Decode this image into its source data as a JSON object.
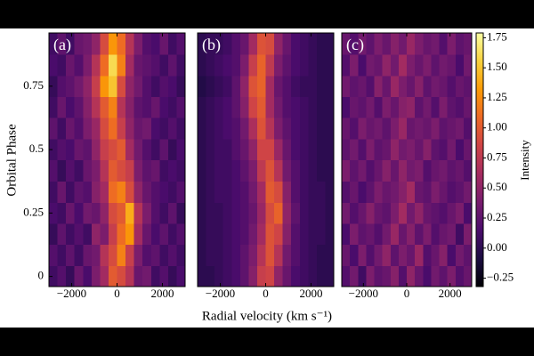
{
  "figure": {
    "xlabel": "Radial velocity (km s⁻¹)",
    "ylabel": "Orbital Phase"
  },
  "colorbar": {
    "label": "Intensity",
    "colormap": "inferno",
    "clim": [
      -0.32,
      1.79
    ],
    "ticks": [
      {
        "value": -0.25,
        "label": "−0.25"
      },
      {
        "value": 0,
        "label": "0.00"
      },
      0.25,
      {
        "value": 0.5,
        "label": "0.50"
      },
      0.75,
      {
        "value": 1,
        "label": "1.00"
      },
      1.25,
      {
        "value": 1.5,
        "label": "1.50"
      },
      1.75
    ]
  },
  "chart_data": [
    {
      "type": "heatmap",
      "title": "(a)",
      "x": [
        -2812.5,
        -2437.5,
        -2062.5,
        -1687.5,
        -1312.5,
        -937.5,
        -562.5,
        -187.5,
        187.5,
        562.5,
        937.5,
        1312.5,
        1687.5,
        2062.5,
        2437.5,
        2812.5
      ],
      "y": [
        0,
        0.083,
        0.167,
        0.25,
        0.333,
        0.417,
        0.5,
        0.583,
        0.667,
        0.75,
        0.833,
        0.917
      ],
      "xlim": [
        -3000,
        3000
      ],
      "xticks": [
        {
          "value": -2000,
          "label": "−2000"
        },
        0,
        2000
      ],
      "ylim": [
        -0.04,
        0.96
      ],
      "yticks": [
        0,
        0.25,
        0.5,
        0.75
      ],
      "values": [
        [
          0.1,
          0.2,
          0.05,
          0.3,
          0.15,
          0.4,
          0.6,
          1.0,
          0.9,
          0.7,
          0.3,
          0.35,
          0.1,
          0.2,
          0.05,
          0.15
        ],
        [
          0.2,
          0.1,
          0.25,
          0.1,
          0.3,
          0.35,
          0.7,
          0.9,
          1.2,
          0.8,
          0.4,
          0.2,
          0.25,
          0.1,
          0.2,
          0.1
        ],
        [
          0.05,
          0.25,
          0.1,
          0.2,
          0.1,
          0.5,
          0.4,
          0.8,
          1.1,
          1.3,
          0.6,
          0.3,
          0.15,
          0.25,
          0.1,
          0.2
        ],
        [
          0.15,
          0.1,
          0.3,
          0.15,
          0.35,
          0.3,
          0.5,
          0.9,
          1.0,
          1.4,
          0.7,
          0.4,
          0.2,
          0.1,
          0.25,
          0.05
        ],
        [
          0.1,
          0.3,
          0.1,
          0.25,
          0.2,
          0.45,
          0.6,
          1.1,
          1.2,
          0.9,
          0.5,
          0.3,
          0.2,
          0.15,
          0.1,
          0.2
        ],
        [
          0.2,
          0.05,
          0.2,
          0.1,
          0.3,
          0.4,
          0.7,
          1.0,
          0.9,
          0.8,
          0.4,
          0.25,
          0.3,
          0.1,
          0.15,
          0.1
        ],
        [
          0.1,
          0.2,
          0.15,
          0.3,
          0.25,
          0.5,
          0.8,
          0.9,
          1.0,
          0.6,
          0.35,
          0.2,
          0.1,
          0.25,
          0.05,
          0.15
        ],
        [
          0.25,
          0.1,
          0.3,
          0.2,
          0.4,
          0.55,
          0.9,
          1.1,
          0.8,
          0.5,
          0.3,
          0.35,
          0.15,
          0.1,
          0.2,
          0.1
        ],
        [
          0.1,
          0.3,
          0.15,
          0.25,
          0.45,
          0.7,
          1.0,
          1.2,
          0.7,
          0.45,
          0.25,
          0.2,
          0.3,
          0.15,
          0.1,
          0.2
        ],
        [
          0.05,
          0.2,
          0.25,
          0.35,
          0.5,
          0.8,
          1.3,
          1.5,
          0.9,
          0.5,
          0.35,
          0.2,
          0.1,
          0.2,
          0.15,
          0.05
        ],
        [
          0.15,
          0.1,
          0.3,
          0.2,
          0.4,
          0.7,
          1.1,
          1.6,
          1.2,
          0.6,
          0.3,
          0.25,
          0.2,
          0.1,
          0.25,
          0.1
        ],
        [
          0.1,
          0.25,
          0.1,
          0.3,
          0.35,
          0.5,
          0.9,
          1.3,
          1.1,
          0.7,
          0.4,
          0.2,
          0.15,
          0.3,
          0.1,
          0.2
        ]
      ]
    },
    {
      "type": "heatmap",
      "title": "(b)",
      "x": [
        -2812.5,
        -2437.5,
        -2062.5,
        -1687.5,
        -1312.5,
        -937.5,
        -562.5,
        -187.5,
        187.5,
        562.5,
        937.5,
        1312.5,
        1687.5,
        2062.5,
        2437.5,
        2812.5
      ],
      "y": [
        0,
        0.083,
        0.167,
        0.25,
        0.333,
        0.417,
        0.5,
        0.583,
        0.667,
        0.75,
        0.833,
        0.917
      ],
      "xlim": [
        -3000,
        3000
      ],
      "xticks": [
        {
          "value": -2000,
          "label": "−2000"
        },
        0,
        2000
      ],
      "ylim": [
        -0.04,
        0.96
      ],
      "values": [
        [
          0.0,
          0.0,
          0.05,
          0.1,
          0.15,
          0.25,
          0.45,
          0.8,
          0.85,
          0.5,
          0.3,
          0.15,
          0.1,
          0.05,
          0.0,
          0.0
        ],
        [
          0.0,
          0.05,
          0.05,
          0.1,
          0.15,
          0.25,
          0.4,
          0.7,
          0.95,
          0.7,
          0.35,
          0.2,
          0.1,
          0.05,
          0.0,
          0.0
        ],
        [
          0.0,
          0.05,
          0.05,
          0.1,
          0.15,
          0.2,
          0.35,
          0.6,
          0.95,
          0.85,
          0.45,
          0.2,
          0.1,
          0.05,
          0.05,
          0.0
        ],
        [
          0.0,
          0.05,
          0.05,
          0.1,
          0.15,
          0.2,
          0.3,
          0.55,
          0.9,
          1.05,
          0.5,
          0.25,
          0.1,
          0.05,
          0.05,
          0.0
        ],
        [
          0.0,
          0.05,
          0.1,
          0.1,
          0.15,
          0.2,
          0.35,
          0.6,
          1.0,
          0.9,
          0.45,
          0.2,
          0.1,
          0.05,
          0.05,
          0.0
        ],
        [
          0.0,
          0.05,
          0.1,
          0.1,
          0.15,
          0.25,
          0.4,
          0.75,
          0.95,
          0.7,
          0.35,
          0.2,
          0.1,
          0.05,
          0.0,
          0.0
        ],
        [
          0.0,
          0.05,
          0.1,
          0.1,
          0.2,
          0.3,
          0.5,
          0.85,
          0.85,
          0.55,
          0.3,
          0.15,
          0.1,
          0.05,
          0.0,
          0.0
        ],
        [
          0.0,
          0.05,
          0.1,
          0.15,
          0.2,
          0.35,
          0.65,
          0.95,
          0.7,
          0.4,
          0.25,
          0.15,
          0.1,
          0.05,
          0.0,
          0.0
        ],
        [
          0.0,
          0.05,
          0.1,
          0.15,
          0.25,
          0.45,
          0.85,
          1.0,
          0.6,
          0.35,
          0.2,
          0.15,
          0.1,
          0.05,
          0.0,
          0.0
        ],
        [
          -0.05,
          0.0,
          0.05,
          0.1,
          0.25,
          0.5,
          0.95,
          1.05,
          0.6,
          0.3,
          0.2,
          0.1,
          0.05,
          0.05,
          0.0,
          0.0
        ],
        [
          0.0,
          0.05,
          0.1,
          0.15,
          0.2,
          0.4,
          0.8,
          1.05,
          0.75,
          0.4,
          0.25,
          0.15,
          0.1,
          0.05,
          0.0,
          0.0
        ],
        [
          0.0,
          0.05,
          0.05,
          0.1,
          0.2,
          0.3,
          0.6,
          0.95,
          0.9,
          0.5,
          0.3,
          0.15,
          0.1,
          0.05,
          0.0,
          0.0
        ]
      ]
    },
    {
      "type": "heatmap",
      "title": "(c)",
      "x": [
        -2812.5,
        -2437.5,
        -2062.5,
        -1687.5,
        -1312.5,
        -937.5,
        -562.5,
        -187.5,
        187.5,
        562.5,
        937.5,
        1312.5,
        1687.5,
        2062.5,
        2437.5,
        2812.5
      ],
      "y": [
        0,
        0.083,
        0.167,
        0.25,
        0.333,
        0.417,
        0.5,
        0.583,
        0.667,
        0.75,
        0.833,
        0.917
      ],
      "xlim": [
        -3000,
        3000
      ],
      "xticks": [
        {
          "value": -2000,
          "label": "−2000"
        },
        0,
        2000
      ],
      "ylim": [
        -0.04,
        0.96
      ],
      "values": [
        [
          0.2,
          0.35,
          0.1,
          0.4,
          0.25,
          0.3,
          0.45,
          0.2,
          0.5,
          0.3,
          0.15,
          0.35,
          0.25,
          0.4,
          0.2,
          0.3
        ],
        [
          0.3,
          0.15,
          0.4,
          0.2,
          0.35,
          0.5,
          0.25,
          0.4,
          0.3,
          0.55,
          0.2,
          0.3,
          0.45,
          0.15,
          0.35,
          0.25
        ],
        [
          0.15,
          0.4,
          0.25,
          0.3,
          0.2,
          0.35,
          0.55,
          0.3,
          0.45,
          0.25,
          0.4,
          0.2,
          0.3,
          0.35,
          0.1,
          0.4
        ],
        [
          0.35,
          0.2,
          0.3,
          0.45,
          0.3,
          0.25,
          0.4,
          0.6,
          0.35,
          0.5,
          0.3,
          0.25,
          0.2,
          0.3,
          0.4,
          0.15
        ],
        [
          0.2,
          0.3,
          0.15,
          0.25,
          0.4,
          0.3,
          0.35,
          0.45,
          0.6,
          0.3,
          0.25,
          0.4,
          0.3,
          0.2,
          0.25,
          0.35
        ],
        [
          0.4,
          0.25,
          0.35,
          0.2,
          0.3,
          0.45,
          0.3,
          0.5,
          0.35,
          0.4,
          0.2,
          0.3,
          0.35,
          0.25,
          0.3,
          0.2
        ],
        [
          0.25,
          0.35,
          0.2,
          0.4,
          0.25,
          0.3,
          0.5,
          0.35,
          0.4,
          0.3,
          0.45,
          0.25,
          0.2,
          0.35,
          0.15,
          0.3
        ],
        [
          0.3,
          0.2,
          0.4,
          0.3,
          0.35,
          0.25,
          0.4,
          0.55,
          0.3,
          0.35,
          0.3,
          0.4,
          0.25,
          0.3,
          0.35,
          0.2
        ],
        [
          0.15,
          0.3,
          0.25,
          0.35,
          0.2,
          0.4,
          0.3,
          0.45,
          0.5,
          0.25,
          0.35,
          0.2,
          0.4,
          0.25,
          0.2,
          0.3
        ],
        [
          0.35,
          0.25,
          0.3,
          0.2,
          0.45,
          0.3,
          0.55,
          0.4,
          0.3,
          0.45,
          0.25,
          0.35,
          0.3,
          0.2,
          0.3,
          0.25
        ],
        [
          0.2,
          0.4,
          0.15,
          0.35,
          0.3,
          0.5,
          0.35,
          0.6,
          0.4,
          0.3,
          0.4,
          0.25,
          0.35,
          0.3,
          0.15,
          0.35
        ],
        [
          0.3,
          0.2,
          0.35,
          0.25,
          0.4,
          0.3,
          0.45,
          0.35,
          0.55,
          0.4,
          0.3,
          0.35,
          0.2,
          0.4,
          0.25,
          0.3
        ]
      ]
    }
  ]
}
